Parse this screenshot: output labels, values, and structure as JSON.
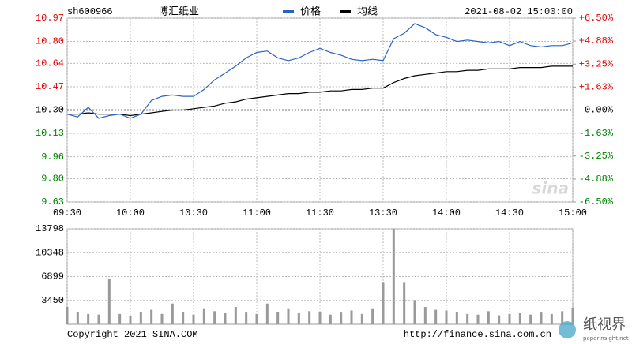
{
  "chart_data": [
    {
      "type": "line",
      "code": "sh600966",
      "title": "博汇纸业",
      "datetime": "2021-08-02 15:00:00",
      "x": [
        "09:30",
        "09:35",
        "09:40",
        "09:45",
        "09:50",
        "09:55",
        "10:00",
        "10:05",
        "10:10",
        "10:15",
        "10:20",
        "10:25",
        "10:30",
        "10:35",
        "10:40",
        "10:45",
        "10:50",
        "10:55",
        "11:00",
        "11:05",
        "11:10",
        "11:15",
        "11:20",
        "11:25",
        "11:30",
        "13:05",
        "13:10",
        "13:15",
        "13:20",
        "13:25",
        "13:30",
        "13:35",
        "13:40",
        "13:45",
        "13:50",
        "13:55",
        "14:00",
        "14:05",
        "14:10",
        "14:15",
        "14:20",
        "14:25",
        "14:30",
        "14:35",
        "14:40",
        "14:45",
        "14:50",
        "14:55",
        "15:00"
      ],
      "series": [
        {
          "name": "价格",
          "color": "#2a63c6",
          "values": [
            10.27,
            10.25,
            10.32,
            10.24,
            10.26,
            10.27,
            10.24,
            10.27,
            10.37,
            10.4,
            10.41,
            10.4,
            10.4,
            10.45,
            10.52,
            10.57,
            10.62,
            10.68,
            10.72,
            10.73,
            10.68,
            10.66,
            10.68,
            10.72,
            10.75,
            10.72,
            10.7,
            10.67,
            10.66,
            10.67,
            10.66,
            10.82,
            10.86,
            10.93,
            10.9,
            10.85,
            10.83,
            10.8,
            10.81,
            10.8,
            10.79,
            10.8,
            10.77,
            10.8,
            10.77,
            10.76,
            10.77,
            10.77,
            10.79
          ]
        },
        {
          "name": "均线",
          "color": "#000000",
          "values": [
            10.27,
            10.27,
            10.28,
            10.27,
            10.27,
            10.27,
            10.26,
            10.27,
            10.28,
            10.29,
            10.3,
            10.3,
            10.31,
            10.32,
            10.33,
            10.35,
            10.36,
            10.38,
            10.39,
            10.4,
            10.41,
            10.42,
            10.42,
            10.43,
            10.43,
            10.44,
            10.44,
            10.45,
            10.45,
            10.46,
            10.46,
            10.5,
            10.53,
            10.55,
            10.56,
            10.57,
            10.58,
            10.58,
            10.59,
            10.59,
            10.6,
            10.6,
            10.6,
            10.61,
            10.61,
            10.61,
            10.62,
            10.62,
            10.62
          ]
        }
      ],
      "xticks": [
        "09:30",
        "10:00",
        "10:30",
        "11:00",
        "11:30",
        "13:30",
        "14:00",
        "14:30",
        "15:00"
      ],
      "ylim": [
        9.63,
        10.97
      ],
      "yticks": [
        10.97,
        {
          "value": 10.8,
          "label": "10.80"
        },
        10.64,
        10.47,
        {
          "value": 10.3,
          "label": "10.30"
        },
        10.13,
        9.96,
        {
          "value": 9.8,
          "label": "9.80"
        },
        9.63
      ],
      "y2lim": [
        -6.5,
        6.5
      ],
      "y2ticks": [
        {
          "value": 6.5,
          "label": "+6.50%"
        },
        {
          "value": 4.88,
          "label": "+4.88%"
        },
        {
          "value": 3.25,
          "label": "+3.25%"
        },
        {
          "value": 1.63,
          "label": "+1.63%"
        },
        {
          "value": 0,
          "label": "0.00%"
        },
        {
          "value": -1.63,
          "label": "-1.63%"
        },
        {
          "value": -3.25,
          "label": "-3.25%"
        },
        {
          "value": -4.88,
          "label": "-4.88%"
        },
        {
          "value": -6.5,
          "label": "-6.50%"
        }
      ],
      "grid": true,
      "logo": "sina"
    },
    {
      "type": "bar",
      "color": "#9a9a9a",
      "values": [
        2500,
        1800,
        1500,
        1400,
        6500,
        1500,
        1200,
        1800,
        2100,
        1500,
        3000,
        1800,
        1400,
        2200,
        1900,
        1600,
        2500,
        1700,
        1500,
        3000,
        1800,
        2200,
        1600,
        1900,
        1800,
        1400,
        1700,
        2000,
        1500,
        2200,
        6000,
        13798,
        6000,
        3500,
        2500,
        2100,
        2000,
        1800,
        1500,
        1400,
        1900,
        1300,
        1500,
        1600,
        1400,
        1700,
        1500,
        1900,
        2400
      ],
      "ylim": [
        0,
        13798
      ],
      "yticks": [
        3450,
        6899,
        10348,
        13798
      ],
      "grid": true
    }
  ],
  "footer": {
    "copyright": "Copyright 2021 SINA.COM",
    "url": "http://finance.sina.com.cn"
  },
  "watermark": {
    "brand": "纸视界",
    "site": "paperinsight.net"
  }
}
